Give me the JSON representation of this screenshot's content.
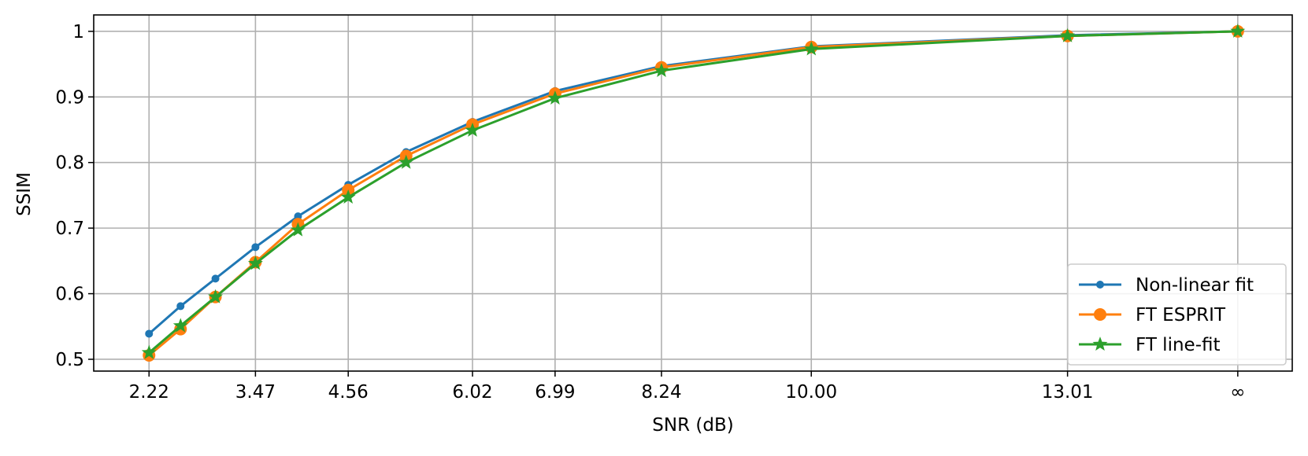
{
  "chart_data": {
    "type": "line",
    "xlabel": "SNR (dB)",
    "ylabel": "SSIM",
    "x": [
      2.22,
      2.59,
      3.0,
      3.47,
      3.97,
      4.56,
      5.24,
      6.02,
      6.99,
      8.24,
      10.0,
      13.01,
      15.01
    ],
    "series": [
      {
        "name": "Non-linear fit",
        "color": "#1f77b4",
        "marker": "dot",
        "values": [
          0.539,
          0.581,
          0.623,
          0.671,
          0.718,
          0.766,
          0.816,
          0.862,
          0.909,
          0.947,
          0.977,
          0.994,
          1.0
        ]
      },
      {
        "name": "FT ESPRIT",
        "color": "#ff7f0e",
        "marker": "circle",
        "values": [
          0.506,
          0.546,
          0.595,
          0.648,
          0.706,
          0.758,
          0.81,
          0.858,
          0.905,
          0.945,
          0.976,
          0.993,
          1.0
        ]
      },
      {
        "name": "FT line-fit",
        "color": "#2ca02c",
        "marker": "star",
        "values": [
          0.51,
          0.551,
          0.595,
          0.646,
          0.697,
          0.747,
          0.8,
          0.849,
          0.898,
          0.94,
          0.973,
          0.993,
          1.0
        ]
      }
    ],
    "xlim": [
      1.57,
      15.65
    ],
    "ylim": [
      0.482,
      1.025
    ],
    "xticks": [
      2.22,
      3.47,
      4.56,
      6.02,
      6.99,
      8.24,
      {
        "value": 10,
        "label": "10.00"
      },
      13.01,
      {
        "value": 15.01,
        "label": "∞"
      }
    ],
    "yticks": [
      0.5,
      0.6,
      0.7,
      0.8,
      0.9,
      1.0
    ],
    "grid": true,
    "legend": "lower right"
  }
}
